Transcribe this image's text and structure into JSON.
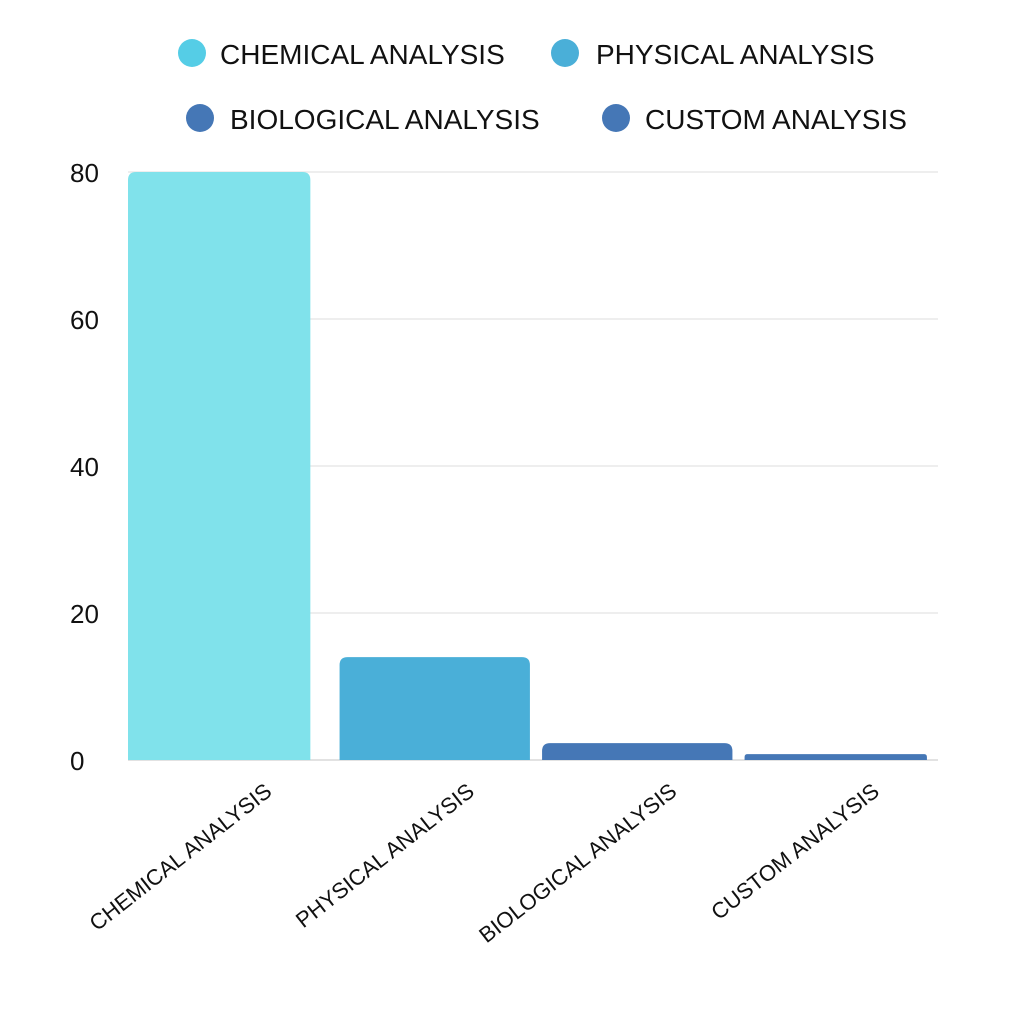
{
  "chart_data": {
    "type": "bar",
    "categories": [
      "CHEMICAL ANALYSIS",
      "PHYSICAL ANALYSIS",
      "BIOLOGICAL ANALYSIS",
      "CUSTOM ANALYSIS"
    ],
    "values": [
      80,
      14,
      2.3,
      0.8
    ],
    "colors": [
      "#80E2EB",
      "#4AAFD8",
      "#4577B6",
      "#4577B6"
    ],
    "legend": {
      "placement": "top",
      "entries": [
        {
          "label": "CHEMICAL ANALYSIS",
          "color": "#55CDE6"
        },
        {
          "label": "PHYSICAL ANALYSIS",
          "color": "#4AAFD8"
        },
        {
          "label": "BIOLOGICAL ANALYSIS",
          "color": "#4577B6"
        },
        {
          "label": "CUSTOM ANALYSIS",
          "color": "#4577B6"
        }
      ]
    },
    "y_ticks": [
      "0",
      "20",
      "40",
      "60",
      "80"
    ],
    "ylim": [
      0,
      80
    ],
    "grid": true,
    "title": "",
    "xlabel": "",
    "ylabel": ""
  }
}
